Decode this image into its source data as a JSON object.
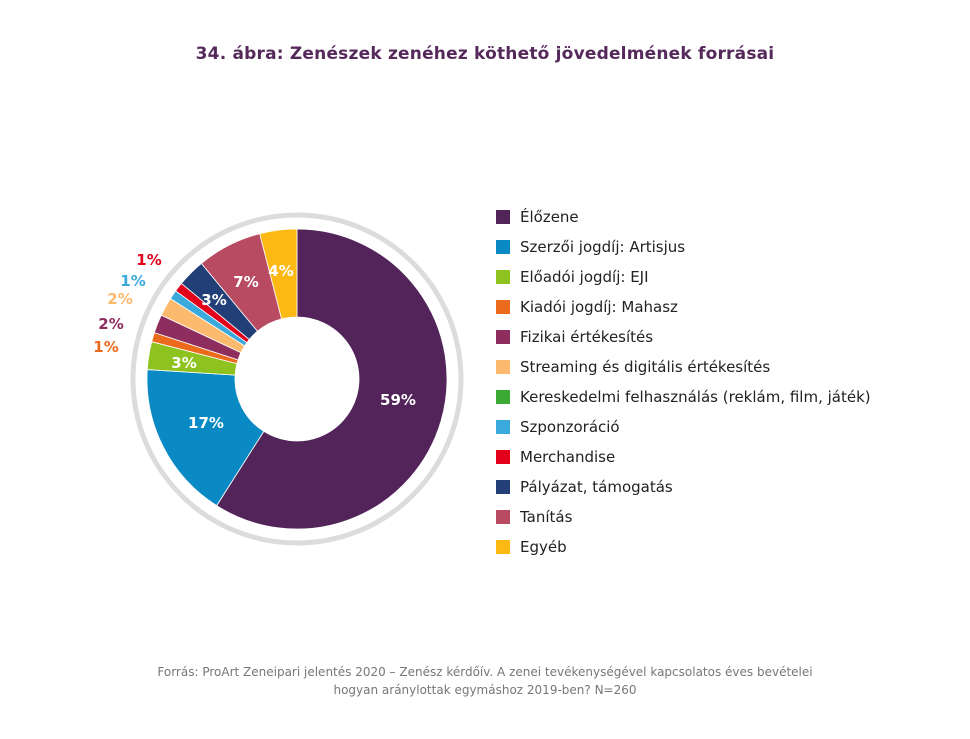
{
  "chart_data": {
    "type": "pie",
    "title": "34. ábra: Zenészek zenéhez köthető jövedelmének forrásai",
    "categories": [
      "Élőzene",
      "Szerzői jogdíj: Artisjus",
      "Előadói jogdíj: EJI",
      "Kiadói jogdíj: Mahasz",
      "Fizikai értékesítés",
      "Streaming és digitális értékesítés",
      "Kereskedelmi felhasználás (reklám, film, játék)",
      "Szponzoráció",
      "Merchandise",
      "Pályázat, támogatás",
      "Tanítás",
      "Egyéb"
    ],
    "values": [
      59,
      17,
      3,
      1,
      2,
      2,
      0,
      1,
      1,
      3,
      7,
      4
    ],
    "value_labels": [
      "59%",
      "17%",
      "3%",
      "1%",
      "2%",
      "2%",
      "",
      "1%",
      "1%",
      "3%",
      "7%",
      "4%"
    ],
    "colors": [
      "#52245a",
      "#0a8ac4",
      "#8dc21f",
      "#ec6a1c",
      "#8e2e5e",
      "#fbba6e",
      "#3aaa35",
      "#3aa9dc",
      "#e2001a",
      "#233f77",
      "#b84b61",
      "#fdb913"
    ],
    "donut": true,
    "legend_position": "right",
    "footnote_lines": [
      "Forrás: ProArt Zeneipari jelentés 2020 – Zenész kérdőív. A zenei tevékenységével kapcsolatos éves bevételei",
      "hogyan aránylottak egymáshoz 2019-ben? N=260"
    ]
  }
}
